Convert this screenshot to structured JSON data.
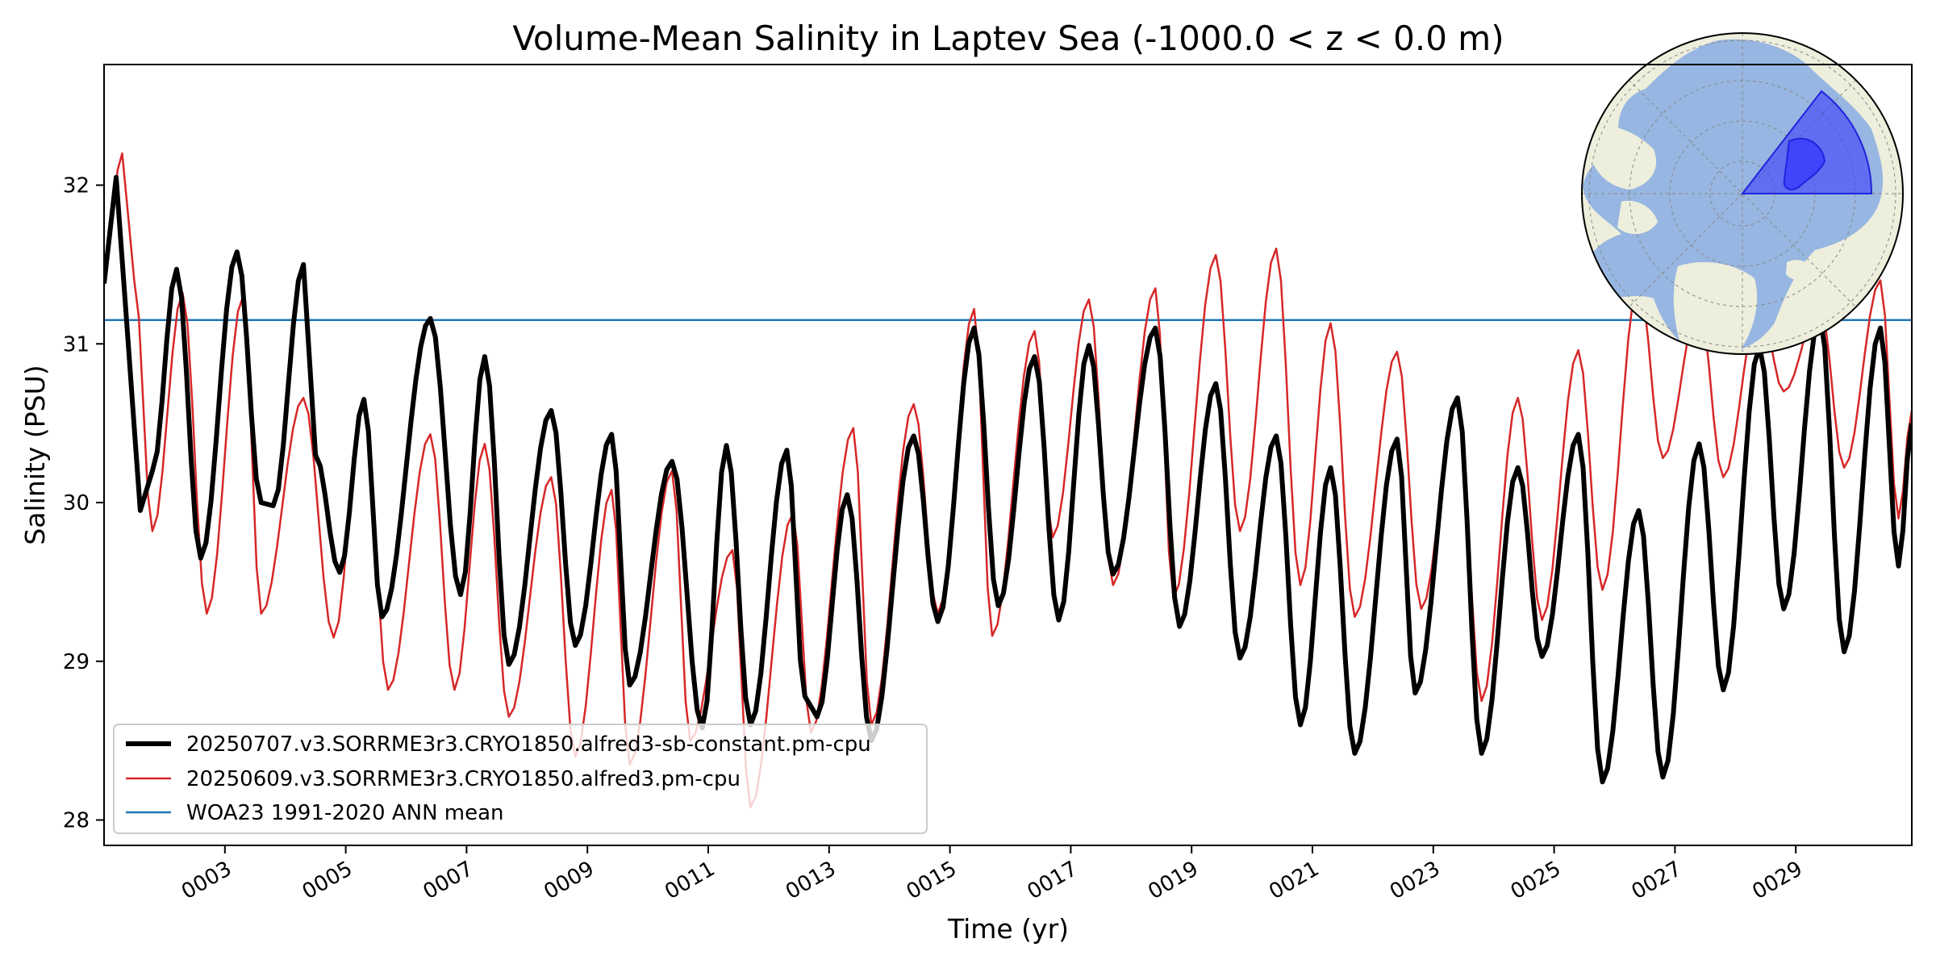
{
  "chart_data": {
    "type": "line",
    "title": "Volume-Mean Salinity in Laptev Sea (-1000.0 < z < 0.0 m)",
    "xlabel": "Time (yr)",
    "ylabel": "Salinity (PSU)",
    "xlim": [
      1.0,
      30.92
    ],
    "ylim": [
      27.84,
      32.76
    ],
    "x_tick_values": [
      3,
      5,
      7,
      9,
      11,
      13,
      15,
      17,
      19,
      21,
      23,
      25,
      27,
      29
    ],
    "x_tick_labels": [
      "0003",
      "0005",
      "0007",
      "0009",
      "0011",
      "0013",
      "0015",
      "0017",
      "0019",
      "0021",
      "0023",
      "0025",
      "0027",
      "0029"
    ],
    "y_ticks": [
      28,
      29,
      30,
      31,
      32
    ],
    "grid": false,
    "legend_position": "lower-left",
    "inset": "polar map of the Arctic Ocean with the Laptev Sea region shaded in blue (upper-right)",
    "series": [
      {
        "name": "20250707.v3.SORRME3r3.CRYO1850.alfred3-sb-constant.pm-cpu",
        "color": "#000000",
        "style": "thick",
        "keypoints": [
          [
            1.0,
            31.38
          ],
          [
            1.2,
            32.05
          ],
          [
            1.4,
            31.0
          ],
          [
            1.6,
            29.95
          ],
          [
            1.8,
            30.2
          ],
          [
            2.2,
            31.47
          ],
          [
            2.6,
            29.65
          ],
          [
            3.2,
            31.58
          ],
          [
            3.6,
            30.0
          ],
          [
            3.8,
            29.98
          ],
          [
            4.3,
            31.5
          ],
          [
            4.5,
            30.3
          ],
          [
            4.9,
            29.56
          ],
          [
            5.3,
            30.65
          ],
          [
            5.6,
            29.28
          ],
          [
            6.4,
            31.16
          ],
          [
            6.9,
            29.42
          ],
          [
            7.3,
            30.92
          ],
          [
            7.7,
            28.98
          ],
          [
            8.4,
            30.58
          ],
          [
            8.8,
            29.1
          ],
          [
            9.4,
            30.43
          ],
          [
            9.7,
            28.85
          ],
          [
            10.4,
            30.26
          ],
          [
            10.9,
            28.58
          ],
          [
            11.3,
            30.36
          ],
          [
            11.7,
            28.6
          ],
          [
            12.3,
            30.33
          ],
          [
            12.6,
            28.78
          ],
          [
            12.8,
            28.65
          ],
          [
            13.3,
            30.05
          ],
          [
            13.7,
            28.5
          ],
          [
            14.4,
            30.42
          ],
          [
            14.8,
            29.25
          ],
          [
            15.4,
            31.1
          ],
          [
            15.8,
            29.35
          ],
          [
            16.4,
            30.92
          ],
          [
            16.8,
            29.26
          ],
          [
            17.3,
            30.99
          ],
          [
            17.7,
            29.55
          ],
          [
            18.4,
            31.1
          ],
          [
            18.8,
            29.22
          ],
          [
            19.4,
            30.75
          ],
          [
            19.8,
            29.02
          ],
          [
            20.4,
            30.42
          ],
          [
            20.8,
            28.6
          ],
          [
            21.3,
            30.22
          ],
          [
            21.7,
            28.42
          ],
          [
            22.4,
            30.4
          ],
          [
            22.7,
            28.8
          ],
          [
            23.4,
            30.66
          ],
          [
            23.8,
            28.42
          ],
          [
            24.4,
            30.22
          ],
          [
            24.8,
            29.03
          ],
          [
            25.4,
            30.43
          ],
          [
            25.8,
            28.24
          ],
          [
            26.4,
            29.95
          ],
          [
            26.8,
            28.27
          ],
          [
            27.4,
            30.37
          ],
          [
            27.8,
            28.82
          ],
          [
            28.4,
            30.98
          ],
          [
            28.8,
            29.33
          ],
          [
            29.4,
            31.18
          ],
          [
            29.8,
            29.06
          ],
          [
            30.4,
            31.1
          ],
          [
            30.7,
            29.6
          ],
          [
            30.92,
            30.5
          ]
        ]
      },
      {
        "name": "20250609.v3.SORRME3r3.CRYO1850.alfred3.pm-cpu",
        "color": "#d62728",
        "style": "thin",
        "keypoints": [
          [
            1.0,
            31.5
          ],
          [
            1.3,
            32.2
          ],
          [
            1.5,
            31.4
          ],
          [
            1.8,
            29.82
          ],
          [
            2.3,
            31.32
          ],
          [
            2.7,
            29.3
          ],
          [
            3.3,
            31.3
          ],
          [
            3.6,
            29.3
          ],
          [
            4.3,
            30.66
          ],
          [
            4.8,
            29.15
          ],
          [
            5.3,
            30.66
          ],
          [
            5.7,
            28.82
          ],
          [
            6.4,
            30.43
          ],
          [
            6.8,
            28.82
          ],
          [
            7.3,
            30.37
          ],
          [
            7.7,
            28.65
          ],
          [
            8.4,
            30.16
          ],
          [
            8.8,
            28.4
          ],
          [
            9.4,
            30.08
          ],
          [
            9.7,
            28.35
          ],
          [
            10.4,
            30.2
          ],
          [
            10.7,
            28.5
          ],
          [
            11.4,
            29.7
          ],
          [
            11.7,
            28.08
          ],
          [
            12.4,
            29.93
          ],
          [
            12.7,
            28.55
          ],
          [
            13.4,
            30.47
          ],
          [
            13.7,
            28.6
          ],
          [
            14.4,
            30.62
          ],
          [
            14.8,
            29.3
          ],
          [
            15.4,
            31.22
          ],
          [
            15.7,
            29.16
          ],
          [
            16.4,
            31.08
          ],
          [
            16.7,
            29.78
          ],
          [
            17.3,
            31.28
          ],
          [
            17.7,
            29.48
          ],
          [
            18.4,
            31.35
          ],
          [
            18.7,
            29.4
          ],
          [
            19.4,
            31.56
          ],
          [
            19.8,
            29.82
          ],
          [
            20.4,
            31.6
          ],
          [
            20.8,
            29.48
          ],
          [
            21.3,
            31.13
          ],
          [
            21.7,
            29.28
          ],
          [
            22.4,
            30.95
          ],
          [
            22.8,
            29.33
          ],
          [
            23.4,
            30.65
          ],
          [
            23.8,
            28.75
          ],
          [
            24.4,
            30.66
          ],
          [
            24.8,
            29.26
          ],
          [
            25.4,
            30.96
          ],
          [
            25.8,
            29.45
          ],
          [
            26.4,
            31.4
          ],
          [
            26.8,
            30.28
          ],
          [
            27.4,
            31.25
          ],
          [
            27.8,
            30.16
          ],
          [
            28.4,
            31.26
          ],
          [
            28.8,
            30.7
          ],
          [
            29.4,
            31.25
          ],
          [
            29.8,
            30.22
          ],
          [
            30.4,
            31.4
          ],
          [
            30.7,
            29.9
          ],
          [
            30.92,
            30.58
          ]
        ]
      },
      {
        "name": "WOA23 1991-2020 ANN mean",
        "color": "#1f77b4",
        "style": "thin",
        "keypoints": [
          [
            1.0,
            31.15
          ],
          [
            30.92,
            31.15
          ]
        ]
      }
    ]
  }
}
